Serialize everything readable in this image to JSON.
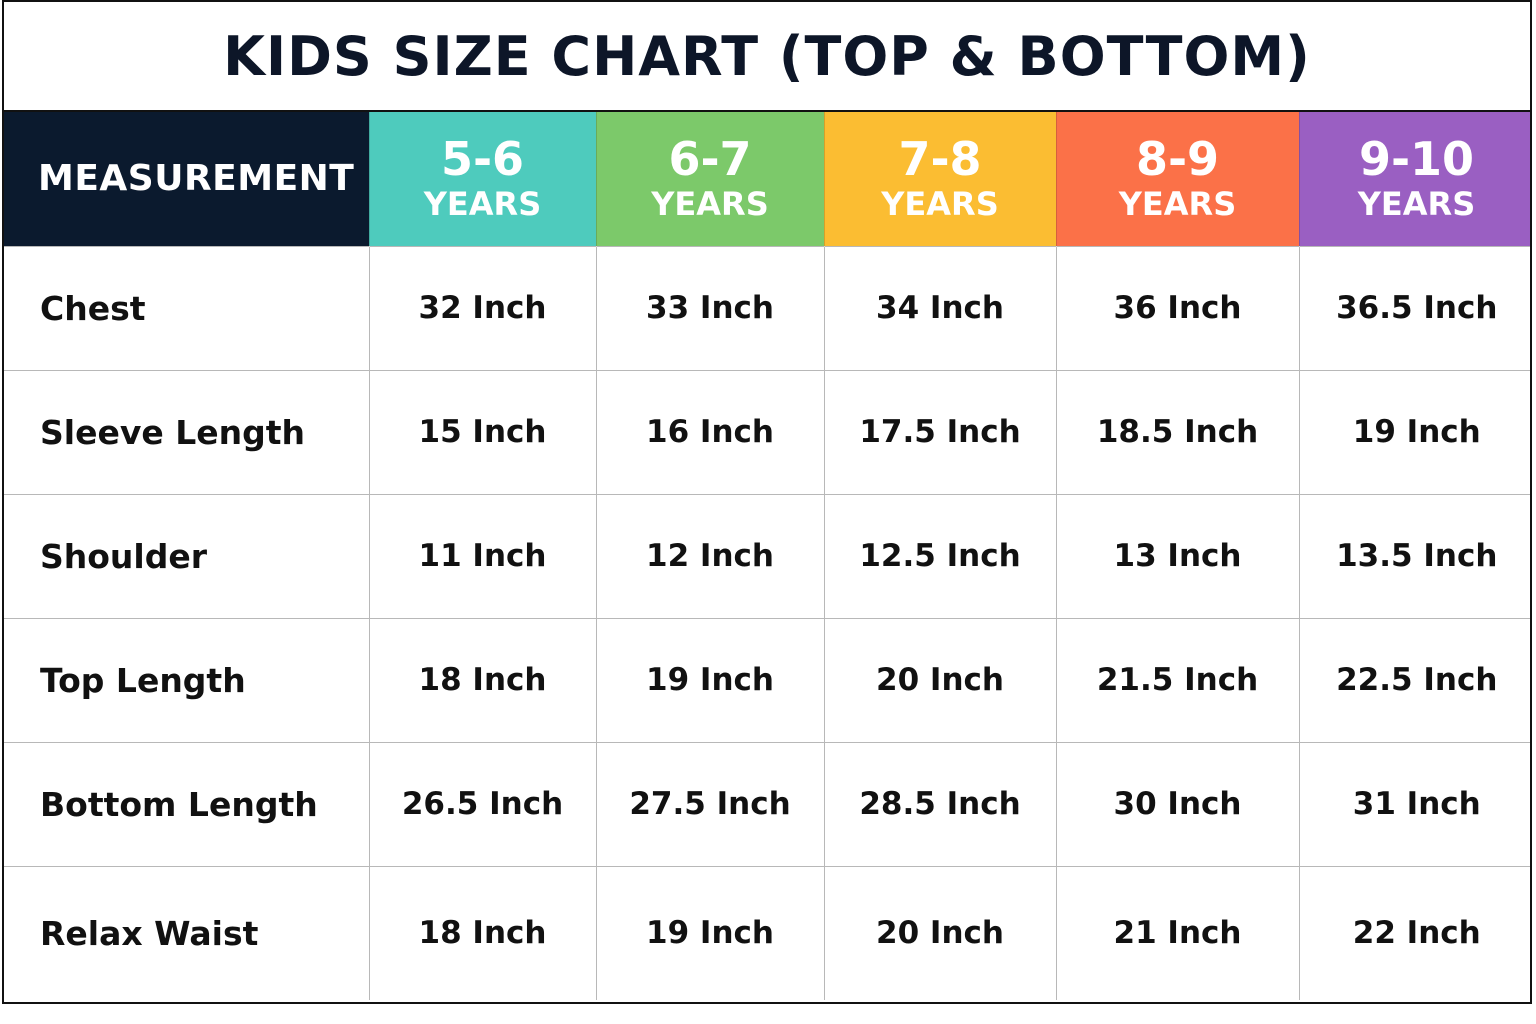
{
  "title": "KIDS SIZE CHART (TOP & BOTTOM)",
  "colors": {
    "header_measurement": "#0b1a2e",
    "header_5_6": "#4ecbbd",
    "header_6_7": "#7cc96a",
    "header_7_8": "#fbbd32",
    "header_8_9": "#fb7148",
    "header_9_10": "#9a5fc2",
    "title_text": "#0d1628"
  },
  "table": {
    "header": {
      "measurement": "MEASUREMENT",
      "sizes": [
        {
          "range": "5-6",
          "unit": "YEARS"
        },
        {
          "range": "6-7",
          "unit": "YEARS"
        },
        {
          "range": "7-8",
          "unit": "YEARS"
        },
        {
          "range": "8-9",
          "unit": "YEARS"
        },
        {
          "range": "9-10",
          "unit": "YEARS"
        }
      ]
    },
    "rows": [
      {
        "label": "Chest",
        "values": [
          "32 Inch",
          "33 Inch",
          "34 Inch",
          "36 Inch",
          "36.5 Inch"
        ]
      },
      {
        "label": "Sleeve Length",
        "values": [
          "15 Inch",
          "16 Inch",
          "17.5 Inch",
          "18.5 Inch",
          "19 Inch"
        ]
      },
      {
        "label": "Shoulder",
        "values": [
          "11 Inch",
          "12 Inch",
          "12.5 Inch",
          "13 Inch",
          "13.5 Inch"
        ]
      },
      {
        "label": "Top Length",
        "values": [
          "18 Inch",
          "19 Inch",
          "20 Inch",
          "21.5 Inch",
          "22.5 Inch"
        ]
      },
      {
        "label": "Bottom Length",
        "values": [
          "26.5 Inch",
          "27.5 Inch",
          "28.5 Inch",
          "30 Inch",
          "31 Inch"
        ]
      },
      {
        "label": "Relax Waist",
        "values": [
          "18 Inch",
          "19 Inch",
          "20 Inch",
          "21 Inch",
          "22 Inch"
        ]
      }
    ]
  }
}
